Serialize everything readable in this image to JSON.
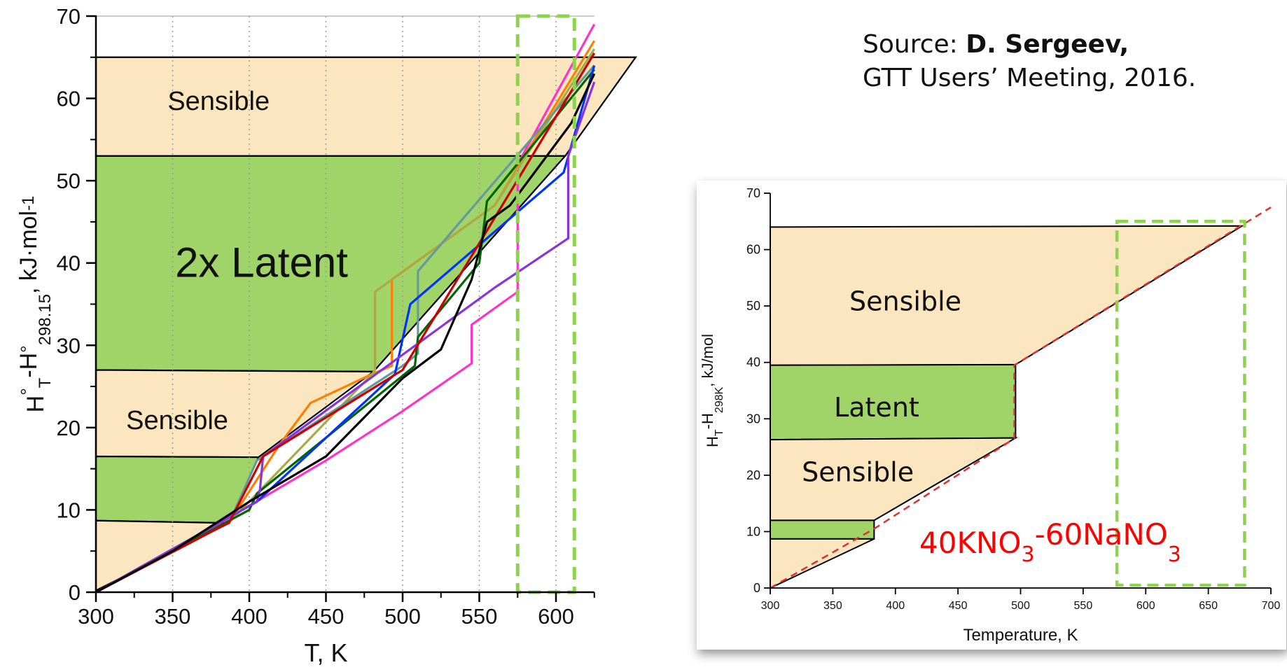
{
  "source": {
    "prefix": "Source: ",
    "author": "D. Sergeev,",
    "line2": "GTT Users’ Meeting, 2016."
  },
  "colors": {
    "sensible": "#fbe6bf",
    "latent": "#a0d468",
    "highlight_box": "#8cd44e",
    "dashed_red": "#e03030",
    "composition_label": "#ff0000"
  },
  "chart_data": [
    {
      "type": "line",
      "xlabel": "T, K",
      "ylabel_main": "H°T-H°298.15, kJ·mol-1",
      "xlim": [
        300,
        625
      ],
      "ylim": [
        0,
        70
      ],
      "x_ticks": [
        300,
        350,
        400,
        450,
        500,
        550,
        600
      ],
      "y_ticks": [
        0,
        10,
        20,
        30,
        40,
        50,
        60,
        70
      ],
      "grid": "vertical dotted",
      "regions": [
        {
          "label": "Sensible",
          "kind": "sensible",
          "points": [
            [
              300,
              53
            ],
            [
              300,
              65
            ],
            [
              652,
              65
            ],
            [
              606,
              53
            ]
          ]
        },
        {
          "label": "2x  Latent",
          "kind": "latent",
          "points": [
            [
              300,
              27
            ],
            [
              300,
              53
            ],
            [
              606,
              53
            ],
            [
              481,
              26.8
            ]
          ]
        },
        {
          "label": "Sensible",
          "kind": "sensible",
          "points": [
            [
              300,
              16.5
            ],
            [
              300,
              27
            ],
            [
              481,
              26.8
            ],
            [
              406,
              16.4
            ]
          ]
        },
        {
          "label": "",
          "kind": "latent",
          "points": [
            [
              300,
              8.7
            ],
            [
              300,
              16.5
            ],
            [
              406,
              16.4
            ],
            [
              387,
              8.4
            ]
          ]
        },
        {
          "label": "",
          "kind": "sensible",
          "points": [
            [
              300,
              0.2
            ],
            [
              300,
              8.7
            ],
            [
              387,
              8.4
            ]
          ]
        }
      ],
      "highlight_box": {
        "x": [
          575,
          612
        ],
        "y": [
          0,
          70
        ]
      },
      "series": [
        {
          "color": "#ff33cc",
          "x": [
            300,
            350,
            400,
            450,
            500,
            545,
            545,
            575,
            575,
            625
          ],
          "y": [
            0,
            5,
            10.5,
            16,
            22,
            27.8,
            32.5,
            36.5,
            52,
            69
          ]
        },
        {
          "color": "#ff7f00",
          "x": [
            300,
            387,
            420,
            440,
            480,
            493,
            493,
            560,
            625
          ],
          "y": [
            0,
            8.5,
            18,
            23,
            26.5,
            27.5,
            38,
            47,
            67
          ]
        },
        {
          "color": "#aaaa44",
          "x": [
            300,
            387,
            480,
            482,
            482,
            560,
            625
          ],
          "y": [
            0,
            8.5,
            26.5,
            27,
            36.5,
            47,
            66
          ]
        },
        {
          "color": "#669999",
          "x": [
            300,
            387,
            405,
            500,
            510,
            510,
            625
          ],
          "y": [
            0,
            8.5,
            16,
            27.5,
            29,
            39,
            64
          ]
        },
        {
          "color": "#006600",
          "x": [
            300,
            400,
            405,
            508,
            510,
            550,
            555,
            625
          ],
          "y": [
            0,
            10,
            12,
            27.5,
            31,
            40,
            47.5,
            63.5
          ]
        },
        {
          "color": "#0033ff",
          "x": [
            300,
            405,
            495,
            505,
            605,
            625
          ],
          "y": [
            0,
            11,
            26.5,
            35,
            51,
            64
          ]
        },
        {
          "color": "#8833dd",
          "x": [
            300,
            405,
            407,
            409,
            560,
            608,
            608,
            625
          ],
          "y": [
            0,
            11,
            12.5,
            16.5,
            37,
            43,
            53,
            62
          ]
        },
        {
          "color": "#cc0000",
          "x": [
            300,
            387,
            409,
            500,
            625
          ],
          "y": [
            0,
            8.5,
            16.5,
            27,
            65.5
          ]
        },
        {
          "color": "#000000",
          "x": [
            300,
            350,
            400,
            450,
            500,
            525,
            545,
            555,
            570,
            610,
            625
          ],
          "y": [
            0,
            5,
            11,
            16.5,
            26,
            29.5,
            38,
            45,
            47,
            57,
            63
          ]
        }
      ],
      "annotations": [
        "Sensible",
        "2x  Latent",
        "Sensible"
      ]
    },
    {
      "type": "line",
      "xlabel": "Temperature, K",
      "ylabel": "HT-H298K, kJ/mol",
      "xlim": [
        300,
        700
      ],
      "ylim": [
        0,
        70
      ],
      "x_ticks": [
        300,
        350,
        400,
        450,
        500,
        550,
        600,
        650,
        700
      ],
      "y_ticks": [
        0,
        10,
        20,
        30,
        40,
        50,
        60,
        70
      ],
      "regions": [
        {
          "label": "Sensible",
          "kind": "sensible",
          "points": [
            [
              300,
              39.5
            ],
            [
              300,
              64
            ],
            [
              677,
              64.2
            ],
            [
              496,
              39.6
            ]
          ]
        },
        {
          "label": "Latent",
          "kind": "latent",
          "points": [
            [
              300,
              26.3
            ],
            [
              300,
              39.5
            ],
            [
              496,
              39.6
            ],
            [
              496,
              26.6
            ]
          ]
        },
        {
          "label": "Sensible",
          "kind": "sensible",
          "points": [
            [
              300,
              12
            ],
            [
              300,
              26.3
            ],
            [
              496,
              26.6
            ],
            [
              383,
              12
            ]
          ]
        },
        {
          "label": "",
          "kind": "latent",
          "points": [
            [
              300,
              8.7
            ],
            [
              300,
              12
            ],
            [
              383,
              12
            ],
            [
              383,
              8.7
            ]
          ]
        },
        {
          "label": "",
          "kind": "sensible",
          "points": [
            [
              300,
              0
            ],
            [
              300,
              8.7
            ],
            [
              383,
              8.7
            ]
          ]
        }
      ],
      "highlight_box": {
        "x": [
          577,
          679
        ],
        "y": [
          0.5,
          65
        ]
      },
      "series": [
        {
          "name": "40KNO3-60NaNO3",
          "style": "dashed",
          "color": "#e03030",
          "x": [
            300,
            383,
            495,
            495,
            700
          ],
          "y": [
            0,
            10.5,
            26.5,
            39.5,
            67.5
          ]
        }
      ],
      "composition_label": {
        "main1": "40KNO",
        "sub1": "3",
        "main2": "-60NaNO",
        "sub2": "3"
      },
      "annotations": [
        "Sensible",
        "Latent",
        "Sensible"
      ]
    }
  ]
}
